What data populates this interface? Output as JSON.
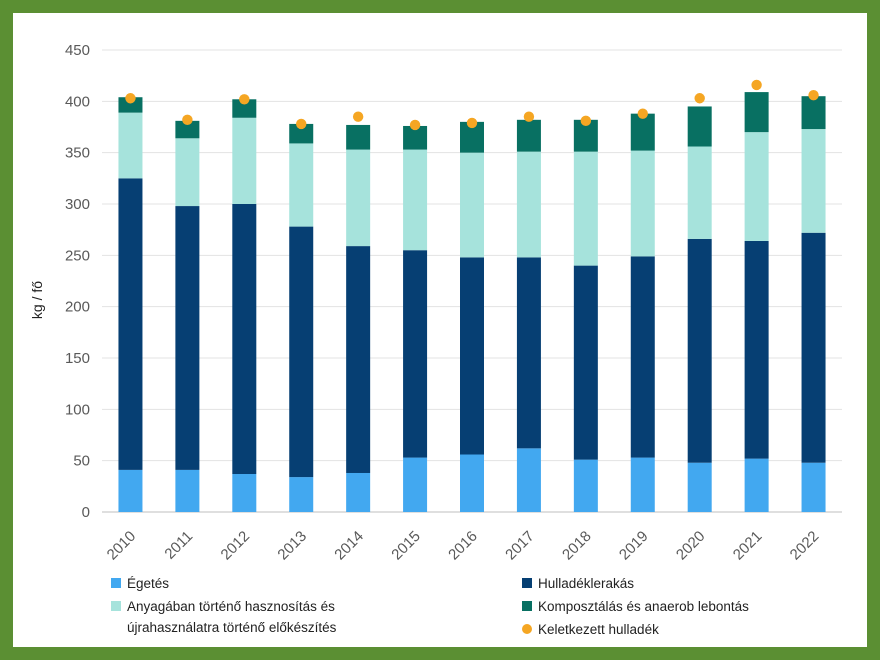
{
  "chart_data": {
    "type": "bar",
    "stacked": true,
    "title": "",
    "xlabel": "",
    "ylabel": "kg / fő",
    "ylim": [
      0,
      450
    ],
    "yticks": [
      0,
      50,
      100,
      150,
      200,
      250,
      300,
      350,
      400,
      450
    ],
    "grid": true,
    "legend_position": "bottom",
    "categories": [
      "2010",
      "2011",
      "2012",
      "2013",
      "2014",
      "2015",
      "2016",
      "2017",
      "2018",
      "2019",
      "2020",
      "2021",
      "2022"
    ],
    "series": [
      {
        "name": "Égetés",
        "color": "#42a8f0",
        "values": [
          41,
          41,
          37,
          34,
          38,
          53,
          56,
          62,
          51,
          53,
          48,
          52,
          48
        ]
      },
      {
        "name": "Hulladéklerakás",
        "color": "#063f73",
        "values": [
          284,
          257,
          263,
          244,
          221,
          202,
          192,
          186,
          189,
          196,
          218,
          212,
          224
        ]
      },
      {
        "name": "Anyagában történő hasznosítás és újrahasználatra történő előkészítés",
        "color": "#a6e3dc",
        "values": [
          64,
          66,
          84,
          81,
          94,
          98,
          102,
          103,
          111,
          103,
          90,
          106,
          101
        ]
      },
      {
        "name": "Komposztálás és anaerob lebontás",
        "color": "#087062",
        "values": [
          15,
          17,
          18,
          19,
          24,
          23,
          30,
          31,
          31,
          36,
          39,
          39,
          32
        ]
      }
    ],
    "points": {
      "name": "Keletkezett hulladék",
      "color": "#f5a623",
      "values": [
        403,
        382,
        402,
        378,
        385,
        377,
        379,
        385,
        381,
        388,
        403,
        416,
        406
      ]
    }
  },
  "legend": {
    "items": [
      {
        "label_lines": [
          "Égetés"
        ],
        "color": "#42a8f0",
        "marker": "square"
      },
      {
        "label_lines": [
          "Hulladéklerakás"
        ],
        "color": "#063f73",
        "marker": "square"
      },
      {
        "label_lines": [
          "Anyagában történő hasznosítás és",
          "újrahasználatra történő előkészítés"
        ],
        "color": "#a6e3dc",
        "marker": "square"
      },
      {
        "label_lines": [
          "Komposztálás és anaerob lebontás"
        ],
        "color": "#087062",
        "marker": "square"
      },
      {
        "label_lines": [
          "Keletkezett hulladék"
        ],
        "color": "#f5a623",
        "marker": "circle"
      }
    ]
  }
}
